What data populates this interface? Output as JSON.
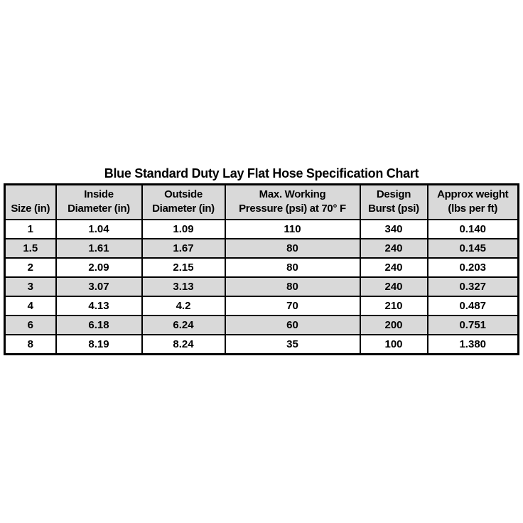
{
  "colors": {
    "page_bg": "#ffffff",
    "table_header_bg": "#d9d9d9",
    "row_bg": "#ffffff",
    "row_alt_bg": "#d9d9d9",
    "border": "#000000",
    "text": "#000000"
  },
  "title": "Blue Standard Duty Lay Flat Hose Specification Chart",
  "table": {
    "headers": [
      {
        "lines": [
          "Size (in)"
        ]
      },
      {
        "lines": [
          "Inside",
          "Diameter (in)"
        ]
      },
      {
        "lines": [
          "Outside",
          "Diameter (in)"
        ]
      },
      {
        "lines": [
          "Max. Working",
          "Pressure (psi) at 70° F"
        ]
      },
      {
        "lines": [
          "Design",
          "Burst (psi)"
        ]
      },
      {
        "lines": [
          "Approx weight",
          "(lbs per ft)"
        ]
      }
    ],
    "rows": [
      {
        "cells": [
          "1",
          "1.04",
          "1.09",
          "110",
          "340",
          "0.140"
        ]
      },
      {
        "cells": [
          "1.5",
          "1.61",
          "1.67",
          "80",
          "240",
          "0.145"
        ]
      },
      {
        "cells": [
          "2",
          "2.09",
          "2.15",
          "80",
          "240",
          "0.203"
        ]
      },
      {
        "cells": [
          "3",
          "3.07",
          "3.13",
          "80",
          "240",
          "0.327"
        ]
      },
      {
        "cells": [
          "4",
          "4.13",
          "4.2",
          "70",
          "210",
          "0.487"
        ]
      },
      {
        "cells": [
          "6",
          "6.18",
          "6.24",
          "60",
          "200",
          "0.751"
        ]
      },
      {
        "cells": [
          "8",
          "8.19",
          "8.24",
          "35",
          "100",
          "1.380"
        ]
      }
    ]
  },
  "chart_data": {
    "type": "table",
    "title": "Blue Standard Duty Lay Flat Hose Specification Chart",
    "columns": [
      "Size (in)",
      "Inside Diameter (in)",
      "Outside Diameter (in)",
      "Max. Working Pressure (psi) at 70° F",
      "Design Burst (psi)",
      "Approx weight (lbs per ft)"
    ],
    "rows": [
      [
        "1",
        "1.04",
        "1.09",
        "110",
        "340",
        "0.140"
      ],
      [
        "1.5",
        "1.61",
        "1.67",
        "80",
        "240",
        "0.145"
      ],
      [
        "2",
        "2.09",
        "2.15",
        "80",
        "240",
        "0.203"
      ],
      [
        "3",
        "3.07",
        "3.13",
        "80",
        "240",
        "0.327"
      ],
      [
        "4",
        "4.13",
        "4.2",
        "70",
        "210",
        "0.487"
      ],
      [
        "6",
        "6.18",
        "6.24",
        "60",
        "200",
        "0.751"
      ],
      [
        "8",
        "8.19",
        "8.24",
        "35",
        "100",
        "1.380"
      ]
    ]
  }
}
